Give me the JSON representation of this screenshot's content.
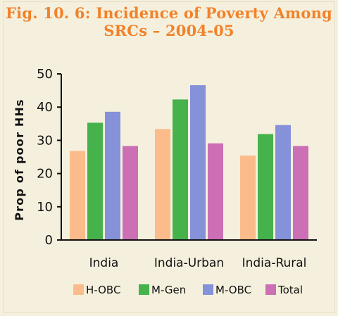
{
  "chart_data": {
    "type": "bar",
    "title": "Fig. 10. 6: Incidence of Poverty Among SRCs – 2004-05",
    "title_lines": [
      "Fig. 10. 6: Incidence of Poverty Among",
      "SRCs – 2004-05"
    ],
    "ylabel": "Prop of poor HHs",
    "xlabel": "",
    "categories": [
      "India",
      "India-Urban",
      "India-Rural"
    ],
    "ylim": [
      0,
      50
    ],
    "yticks": [
      0,
      10,
      20,
      30,
      40,
      50
    ],
    "grid": false,
    "legend_position": "bottom",
    "series": [
      {
        "name": "H-OBC",
        "color": "#fbbb8a",
        "values": [
          26.8,
          33.4,
          25.4
        ]
      },
      {
        "name": "M-Gen",
        "color": "#46b24c",
        "values": [
          35.3,
          42.3,
          31.9
        ]
      },
      {
        "name": "M-OBC",
        "color": "#8591d9",
        "values": [
          38.6,
          46.6,
          34.6
        ]
      },
      {
        "name": "Total",
        "color": "#cc6fb5",
        "values": [
          28.3,
          29.1,
          28.3
        ]
      }
    ]
  }
}
